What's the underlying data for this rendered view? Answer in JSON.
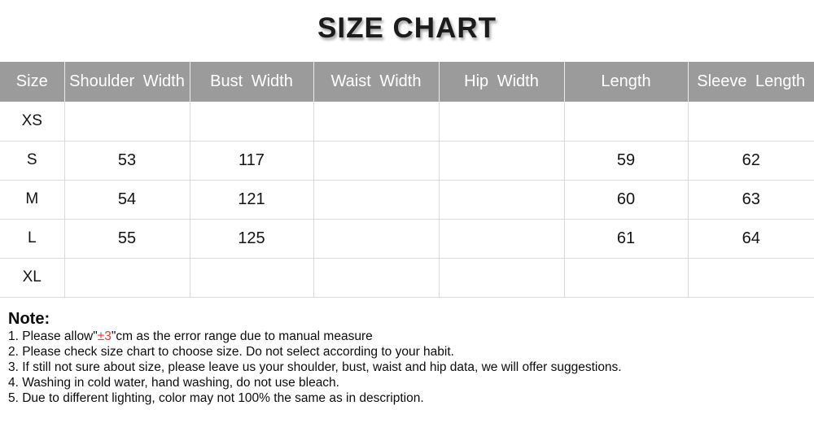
{
  "title": "SIZE CHART",
  "table": {
    "headers": [
      "Size",
      "Shoulder Width",
      "Bust Width",
      "Waist Width",
      "Hip Width",
      "Length",
      "Sleeve Length"
    ],
    "rows": [
      {
        "size": "XS",
        "values": [
          "",
          "",
          "",
          "",
          "",
          ""
        ]
      },
      {
        "size": "S",
        "values": [
          "53",
          "117",
          "",
          "",
          "59",
          "62"
        ]
      },
      {
        "size": "M",
        "values": [
          "54",
          "121",
          "",
          "",
          "60",
          "63"
        ]
      },
      {
        "size": "L",
        "values": [
          "55",
          "125",
          "",
          "",
          "61",
          "64"
        ]
      },
      {
        "size": "XL",
        "values": [
          "",
          "",
          "",
          "",
          "",
          ""
        ]
      }
    ]
  },
  "note": {
    "heading": "Note:",
    "accent_color": "#e8392b",
    "lines": [
      {
        "parts": [
          {
            "text": "1. Please allow\""
          },
          {
            "text": "±3",
            "accent": true
          },
          {
            "text": "\"cm as the error range due to manual measure"
          }
        ]
      },
      {
        "parts": [
          {
            "text": "2. Please check size chart to choose size. Do not select according to your habit."
          }
        ]
      },
      {
        "parts": [
          {
            "text": "3. If still not sure about size, please leave us your shoulder, bust, waist and hip data, we will offer suggestions."
          }
        ]
      },
      {
        "parts": [
          {
            "text": "4. Washing in cold water, hand washing, do not use bleach."
          }
        ]
      },
      {
        "parts": [
          {
            "text": "5. Due to different lighting, color may not 100% the same as in description."
          }
        ]
      }
    ]
  },
  "colors": {
    "header_bg": "#9b9b9b",
    "header_text": "#ffffff",
    "border": "#d9d9d9",
    "accent": "#e8392b"
  },
  "chart_data": {
    "type": "table",
    "title": "SIZE CHART",
    "columns": [
      "Size",
      "Shoulder Width",
      "Bust Width",
      "Waist Width",
      "Hip Width",
      "Length",
      "Sleeve Length"
    ],
    "rows": [
      [
        "XS",
        null,
        null,
        null,
        null,
        null,
        null
      ],
      [
        "S",
        53,
        117,
        null,
        null,
        59,
        62
      ],
      [
        "M",
        54,
        121,
        null,
        null,
        60,
        63
      ],
      [
        "L",
        55,
        125,
        null,
        null,
        61,
        64
      ],
      [
        "XL",
        null,
        null,
        null,
        null,
        null,
        null
      ]
    ],
    "units": "cm",
    "notes": "±3 cm error range due to manual measure"
  }
}
